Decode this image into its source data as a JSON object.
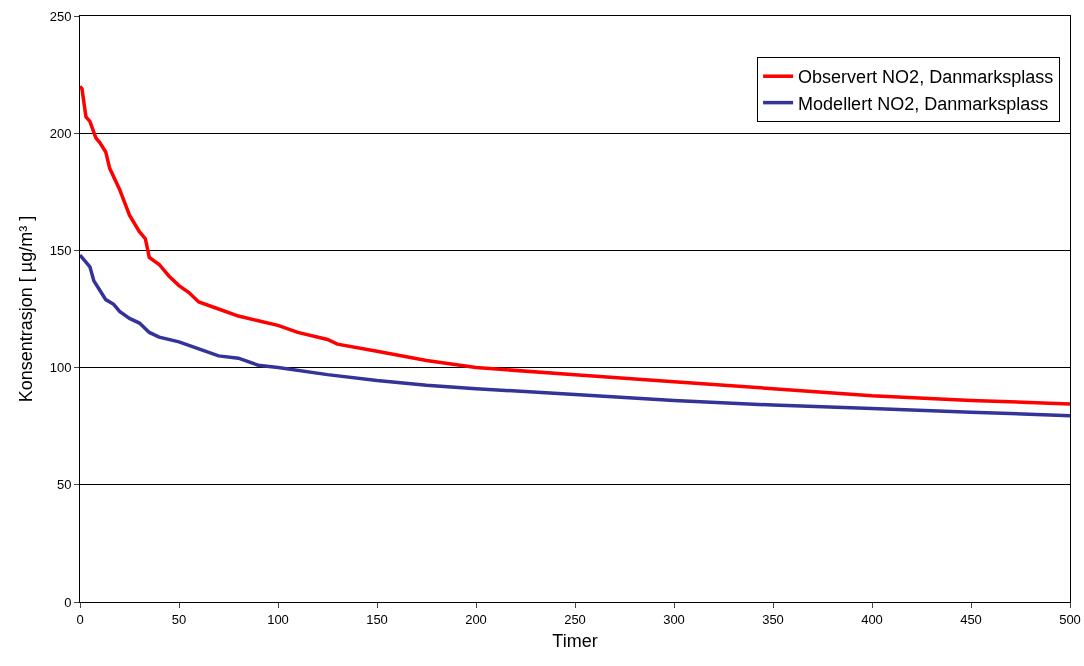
{
  "chart_data": {
    "type": "line",
    "xlabel": "Timer",
    "ylabel": "Konsentrasjon [ µg/m³ ]",
    "xlim": [
      0,
      500
    ],
    "ylim": [
      0,
      250
    ],
    "xticks": [
      0,
      50,
      100,
      150,
      200,
      250,
      300,
      350,
      400,
      450,
      500
    ],
    "yticks": [
      0,
      50,
      100,
      150,
      200,
      250
    ],
    "grid": "y",
    "legend": "top right",
    "marker": "none",
    "line_style": "solid",
    "series": [
      {
        "name": "Observert NO2, Danmarksplass",
        "color": "#ff0000",
        "x": [
          0,
          1,
          3,
          5,
          8,
          10,
          13,
          15,
          20,
          25,
          30,
          33,
          35,
          40,
          45,
          50,
          55,
          60,
          70,
          80,
          90,
          100,
          110,
          125,
          130,
          150,
          175,
          200,
          250,
          300,
          350,
          400,
          450,
          500
        ],
        "values": [
          220,
          219,
          207,
          205,
          198,
          196,
          192,
          185,
          176,
          165,
          158,
          155,
          147,
          144,
          139,
          135,
          132,
          128,
          125,
          122,
          120,
          118,
          115,
          112,
          110,
          107,
          103,
          100,
          97,
          94,
          91,
          88,
          86,
          84.5
        ]
      },
      {
        "name": "Modellert NO2, Danmarksplass",
        "color": "#333399",
        "x": [
          0,
          3,
          5,
          7,
          10,
          13,
          17,
          20,
          25,
          30,
          35,
          40,
          50,
          60,
          70,
          80,
          90,
          100,
          125,
          150,
          175,
          200,
          250,
          300,
          350,
          400,
          450,
          500
        ],
        "values": [
          148,
          145,
          143,
          137,
          133,
          129,
          127,
          124,
          121,
          119,
          115,
          113,
          111,
          108,
          105,
          104,
          101,
          100,
          97,
          94.5,
          92.5,
          91,
          88.5,
          86,
          84,
          82.5,
          81,
          79.5
        ]
      }
    ]
  }
}
